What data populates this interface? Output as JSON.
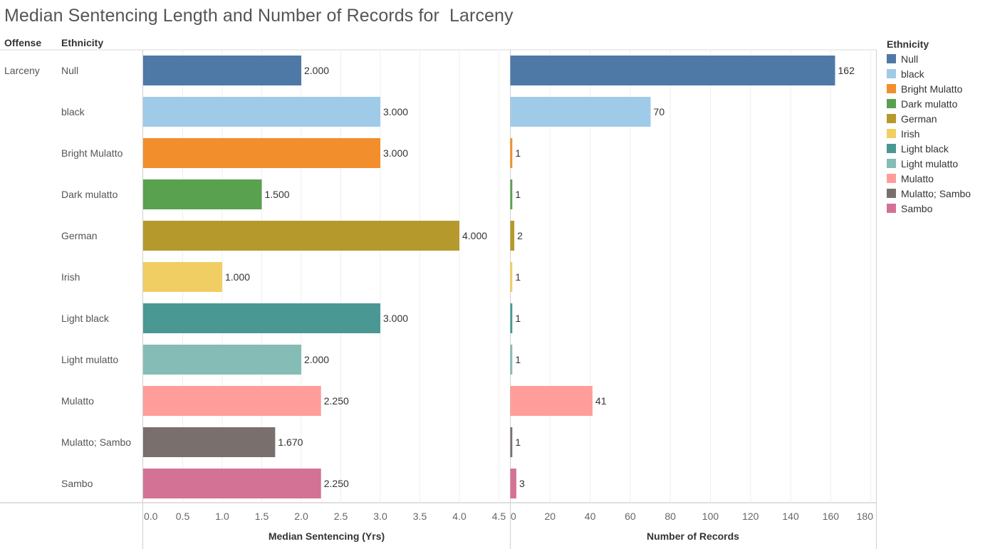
{
  "title": "Median Sentencing Length and Number of Records for  Larceny",
  "headers": {
    "offense": "Offense",
    "ethnicity": "Ethnicity"
  },
  "legend": {
    "title": "Ethnicity"
  },
  "chart_data": {
    "type": "bar",
    "title": "Median Sentencing Length and Number of Records for  Larceny",
    "row_dimensions": [
      "Offense",
      "Ethnicity"
    ],
    "offense": "Larceny",
    "categories": [
      "Null",
      "black",
      "Bright Mulatto",
      "Dark mulatto",
      "German",
      "Irish",
      "Light black",
      "Light mulatto",
      "Mulatto",
      "Mulatto; Sambo",
      "Sambo"
    ],
    "colors": [
      "#4e79a7",
      "#a0cbe8",
      "#f28e2b",
      "#59a14f",
      "#b6992d",
      "#f1ce63",
      "#499894",
      "#86bcb6",
      "#ff9d9a",
      "#79706e",
      "#d37295"
    ],
    "orientation": "horizontal",
    "grid": true,
    "legend_position": "right",
    "panels": [
      {
        "measure": "Median Sentencing (Yrs)",
        "xlabel": "Median Sentencing (Yrs)",
        "xlim": [
          0,
          4.5
        ],
        "ticks": [
          "0.0",
          "0.5",
          "1.0",
          "1.5",
          "2.0",
          "2.5",
          "3.0",
          "3.5",
          "4.0",
          "4.5"
        ],
        "values": [
          2.0,
          3.0,
          3.0,
          1.5,
          4.0,
          1.0,
          3.0,
          2.0,
          2.25,
          1.67,
          2.25
        ],
        "labels": [
          "2.000",
          "3.000",
          "3.000",
          "1.500",
          "4.000",
          "1.000",
          "3.000",
          "2.000",
          "2.250",
          "1.670",
          "2.250"
        ]
      },
      {
        "measure": "Number of Records",
        "xlabel": "Number of Records",
        "xlim": [
          0,
          180
        ],
        "ticks": [
          "0",
          "20",
          "40",
          "60",
          "80",
          "100",
          "120",
          "140",
          "160",
          "180"
        ],
        "values": [
          162,
          70,
          1,
          1,
          2,
          1,
          1,
          1,
          41,
          1,
          3
        ],
        "labels": [
          "162",
          "70",
          "1",
          "1",
          "2",
          "1",
          "1",
          "1",
          "41",
          "1",
          "3"
        ]
      }
    ]
  }
}
